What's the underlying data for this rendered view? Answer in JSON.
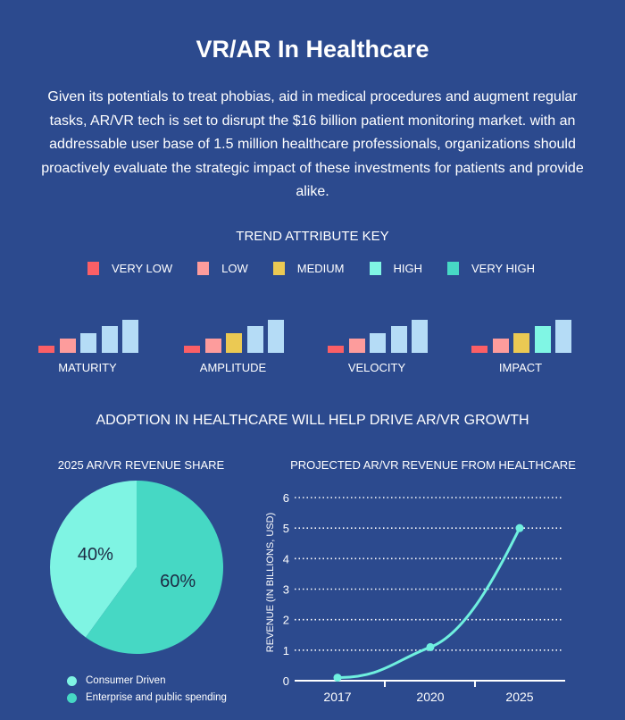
{
  "title": "VR/AR In Healthcare",
  "intro": "Given its potentials to treat phobias, aid in medical procedures and augment regular tasks, AR/VR tech is set to disrupt the $16 billion patient monitoring market. with an addressable user base of 1.5 million healthcare professionals, organizations should proactively evaluate the strategic impact of these investments for patients and provide alike.",
  "key": {
    "title": "TREND ATTRIBUTE KEY",
    "levels": [
      {
        "label": "VERY LOW",
        "color": "#fb5f66"
      },
      {
        "label": "LOW",
        "color": "#fd9c9c"
      },
      {
        "label": "MEDIUM",
        "color": "#ebc953"
      },
      {
        "label": "HIGH",
        "color": "#80f6e4"
      },
      {
        "label": "VERY HIGH",
        "color": "#47d9c5"
      }
    ],
    "inactive_color": "#b5dcf6"
  },
  "attributes": [
    {
      "label": "MATURITY",
      "level": 2
    },
    {
      "label": "AMPLITUDE",
      "level": 3
    },
    {
      "label": "VELOCITY",
      "level": 2
    },
    {
      "label": "IMPACT",
      "level": 4
    }
  ],
  "section_title": "ADOPTION IN HEALTHCARE WILL HELP DRIVE AR/VR GROWTH",
  "chart_data": [
    {
      "type": "pie",
      "title": "2025 AR/VR REVENUE SHARE",
      "slices": [
        {
          "name": "Consumer Driven",
          "value": 40,
          "label": "40%",
          "color": "#7ff4e3"
        },
        {
          "name": "Enterprise and public spending",
          "value": 60,
          "label": "60%",
          "color": "#46d8c4"
        }
      ],
      "legend": "bottom"
    },
    {
      "type": "line",
      "title": "PROJECTED AR/VR REVENUE FROM HEALTHCARE",
      "ylabel": "REVENUE (IN BILLIONS, USD)",
      "xlabel": "",
      "categories": [
        "2017",
        "2020",
        "2025"
      ],
      "values": [
        0.1,
        1.1,
        5.0
      ],
      "ylim": [
        0,
        6
      ],
      "yticks": [
        "0",
        "1",
        "2",
        "3",
        "4",
        "5",
        "6"
      ],
      "grid": true,
      "color": "#6ff0df"
    }
  ]
}
